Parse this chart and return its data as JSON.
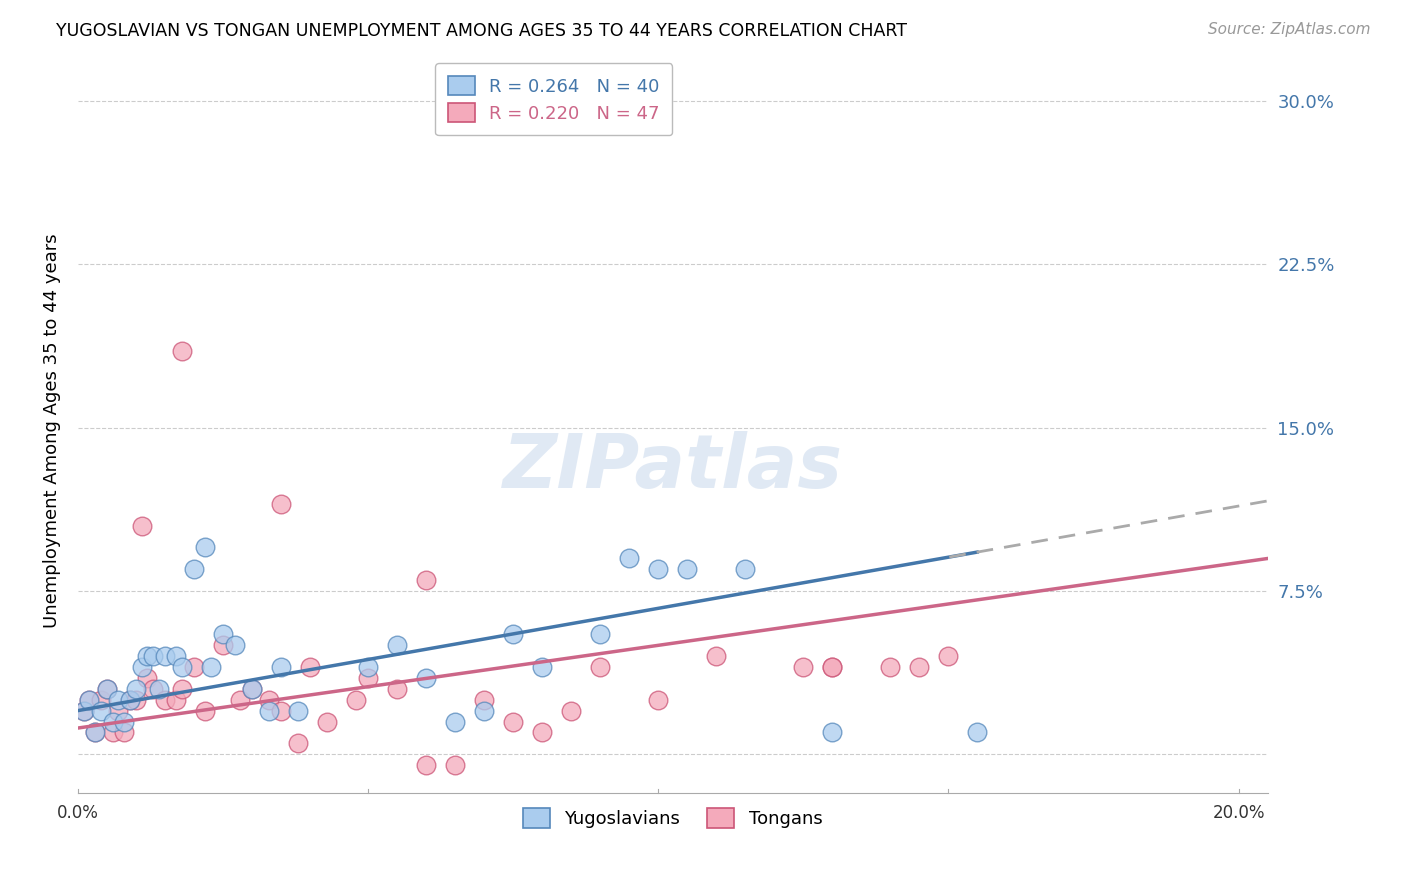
{
  "title": "YUGOSLAVIAN VS TONGAN UNEMPLOYMENT AMONG AGES 35 TO 44 YEARS CORRELATION CHART",
  "source": "Source: ZipAtlas.com",
  "ylabel": "Unemployment Among Ages 35 to 44 years",
  "xlim": [
    0.0,
    0.205
  ],
  "ylim": [
    -0.018,
    0.315
  ],
  "yticks": [
    0.0,
    0.075,
    0.15,
    0.225,
    0.3
  ],
  "ytick_labels": [
    "",
    "7.5%",
    "15.0%",
    "22.5%",
    "30.0%"
  ],
  "xticks": [
    0.0,
    0.05,
    0.1,
    0.15,
    0.2
  ],
  "background_color": "#ffffff",
  "yugoslav_face_color": "#aaccee",
  "yugoslav_edge_color": "#5588bb",
  "tongan_face_color": "#f4aabb",
  "tongan_edge_color": "#cc5577",
  "yugoslav_line_color": "#4477aa",
  "tongan_line_color": "#cc6688",
  "R_yugoslav": 0.264,
  "N_yugoslav": 40,
  "R_tongan": 0.22,
  "N_tongan": 47,
  "yugoslav_x": [
    0.001,
    0.002,
    0.003,
    0.004,
    0.005,
    0.006,
    0.007,
    0.008,
    0.009,
    0.01,
    0.011,
    0.012,
    0.013,
    0.014,
    0.015,
    0.017,
    0.018,
    0.02,
    0.022,
    0.023,
    0.025,
    0.027,
    0.03,
    0.033,
    0.035,
    0.038,
    0.05,
    0.055,
    0.06,
    0.065,
    0.07,
    0.075,
    0.08,
    0.09,
    0.095,
    0.1,
    0.105,
    0.115,
    0.13,
    0.155
  ],
  "yugoslav_y": [
    0.02,
    0.025,
    0.01,
    0.02,
    0.03,
    0.015,
    0.025,
    0.015,
    0.025,
    0.03,
    0.04,
    0.045,
    0.045,
    0.03,
    0.045,
    0.045,
    0.04,
    0.085,
    0.095,
    0.04,
    0.055,
    0.05,
    0.03,
    0.02,
    0.04,
    0.02,
    0.04,
    0.05,
    0.035,
    0.015,
    0.02,
    0.055,
    0.04,
    0.055,
    0.09,
    0.085,
    0.085,
    0.085,
    0.01,
    0.01
  ],
  "tongan_x": [
    0.001,
    0.002,
    0.003,
    0.004,
    0.005,
    0.006,
    0.007,
    0.008,
    0.009,
    0.01,
    0.011,
    0.012,
    0.013,
    0.015,
    0.017,
    0.018,
    0.02,
    0.022,
    0.025,
    0.028,
    0.03,
    0.033,
    0.035,
    0.038,
    0.04,
    0.043,
    0.048,
    0.05,
    0.055,
    0.06,
    0.065,
    0.07,
    0.075,
    0.08,
    0.085,
    0.09,
    0.1,
    0.11,
    0.125,
    0.13,
    0.14,
    0.15,
    0.018,
    0.035,
    0.06,
    0.13,
    0.145
  ],
  "tongan_y": [
    0.02,
    0.025,
    0.01,
    0.025,
    0.03,
    0.01,
    0.02,
    0.01,
    0.025,
    0.025,
    0.105,
    0.035,
    0.03,
    0.025,
    0.025,
    0.03,
    0.04,
    0.02,
    0.05,
    0.025,
    0.03,
    0.025,
    0.02,
    0.005,
    0.04,
    0.015,
    0.025,
    0.035,
    0.03,
    -0.005,
    -0.005,
    0.025,
    0.015,
    0.01,
    0.02,
    0.04,
    0.025,
    0.045,
    0.04,
    0.04,
    0.04,
    0.045,
    0.185,
    0.115,
    0.08,
    0.04,
    0.04
  ]
}
